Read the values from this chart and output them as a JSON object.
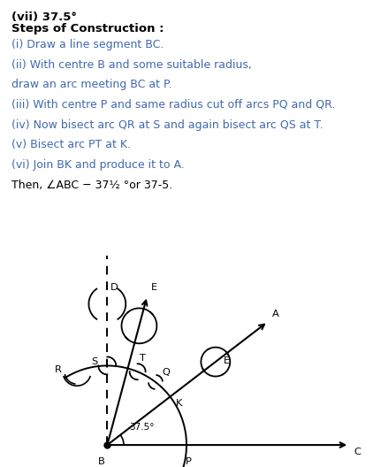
{
  "bg_color": "#ffffff",
  "title": "(vii) 37.5°",
  "steps_header": "Steps of Construction :",
  "blue": "#4169B0",
  "black": "#000000",
  "lines": [
    [
      "(i) Draw a line segment BC.",
      "blue"
    ],
    [
      "(ii) With centre B and some suitable radius,",
      "blue"
    ],
    [
      "draw an arc meeting BC at P.",
      "blue"
    ],
    [
      "(iii) With centre P and same radius cut off arcs PQ and QR.",
      "blue"
    ],
    [
      "(iv) Now bisect arc QR at S and again bisect arc QS at T.",
      "blue"
    ],
    [
      "(v) Bisect arc PT at K.",
      "blue"
    ],
    [
      "(vi) Join BK and produce it to A.",
      "blue"
    ],
    [
      "Then, ∠ABC − 37½ °or 37-5.",
      "black"
    ]
  ]
}
